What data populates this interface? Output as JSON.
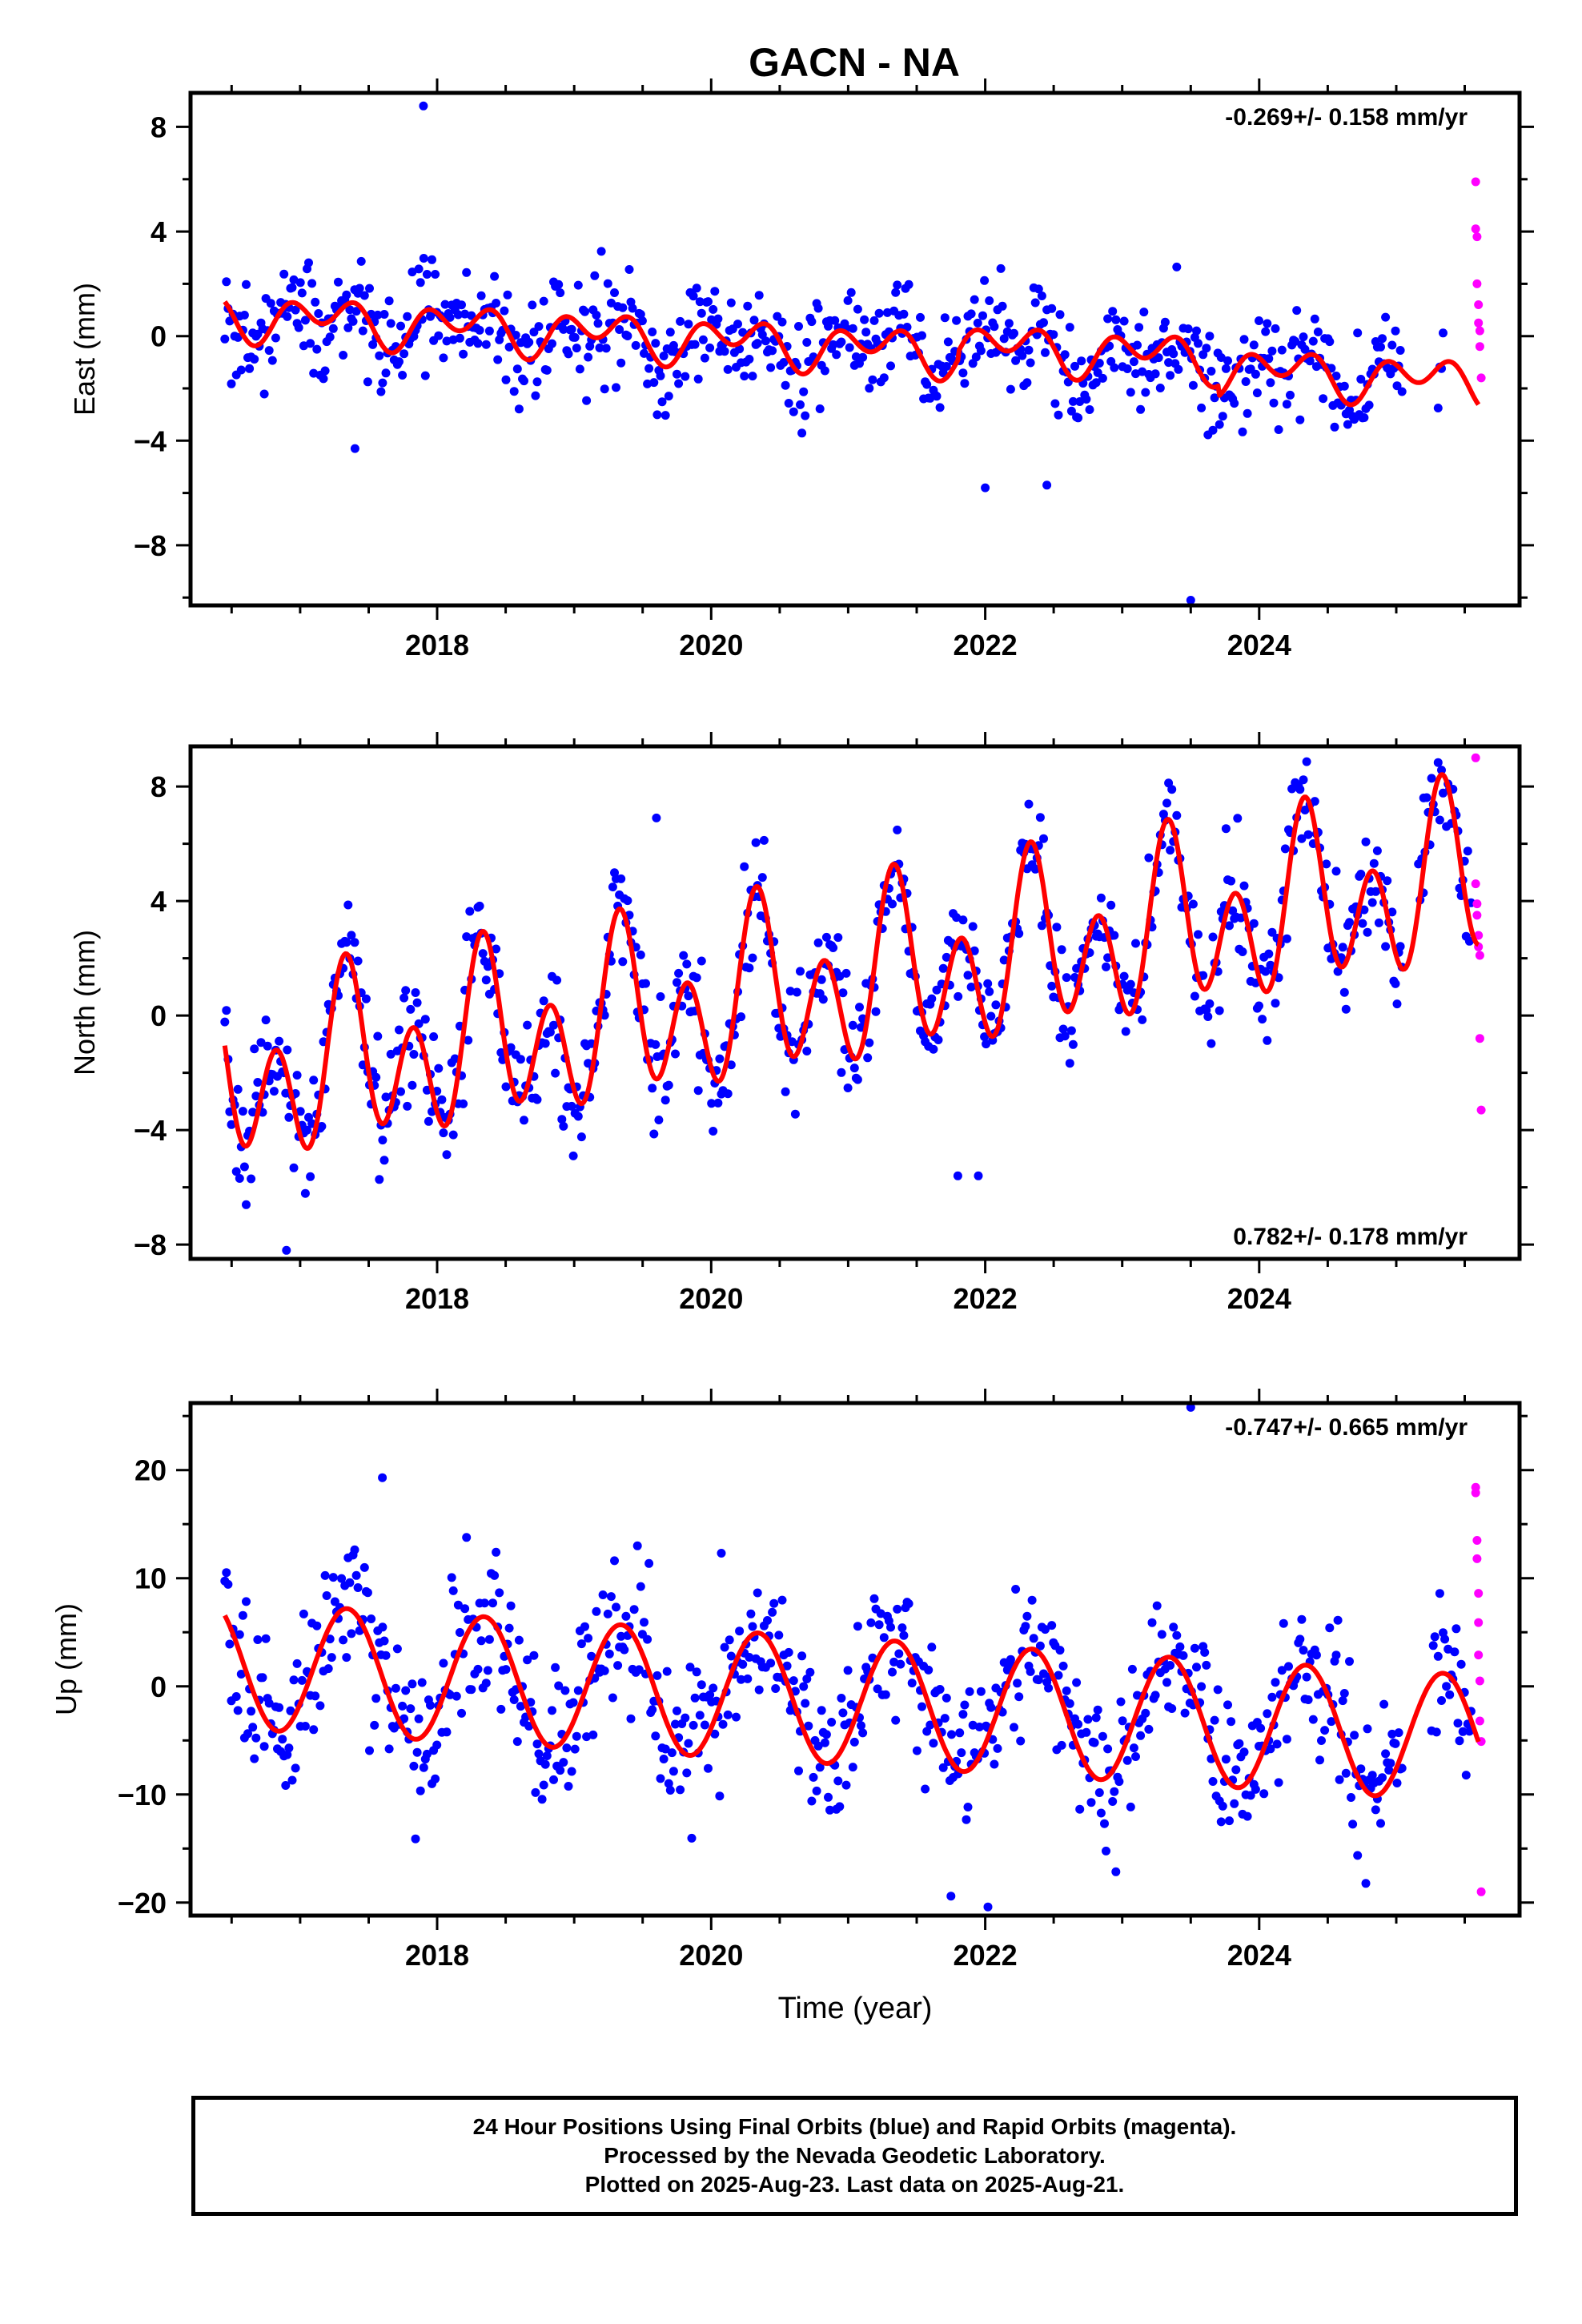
{
  "figure": {
    "title": "GACN - NA"
  },
  "caption": {
    "lines": [
      "24 Hour Positions Using Final Orbits (blue) and Rapid Orbits (magenta).",
      "Processed by the Nevada Geodetic Laboratory.",
      "Plotted on 2025-Aug-23. Last data on 2025-Aug-21."
    ]
  },
  "colors": {
    "final": "#0000ff",
    "rapid": "#ff00ff",
    "model": "#ff0000",
    "frame": "#000000"
  },
  "chart_data": [
    {
      "type": "scatter",
      "id": "east",
      "title": "GACN - NA",
      "ylabel": "East (mm)",
      "xlabel": "",
      "xlim": [
        2016.2,
        2025.9
      ],
      "ylim": [
        -10.3,
        9.3
      ],
      "xticks": [
        2018,
        2020,
        2022,
        2024
      ],
      "yticks": [
        -8,
        -4,
        0,
        4,
        8
      ],
      "yticklabels": [
        "−8",
        "−4",
        "0",
        "4",
        "8"
      ],
      "rate_label": "-0.269+/- 0.158 mm/yr",
      "rate_label_position": "top-right",
      "series": [
        {
          "name": "Final Orbits",
          "role": "final",
          "start": 2016.45,
          "end": 2025.35,
          "step": 0.012,
          "gap": [
            2025.05,
            2025.3
          ],
          "scatter": 1.0
        },
        {
          "name": "Rapid Orbits",
          "role": "rapid",
          "x": [
            2025.58,
            2025.58,
            2025.59,
            2025.59,
            2025.6,
            2025.6,
            2025.61,
            2025.61,
            2025.62
          ],
          "y": [
            5.9,
            4.1,
            3.8,
            2.0,
            1.2,
            0.5,
            0.2,
            -0.4,
            -1.6
          ]
        },
        {
          "name": "Model",
          "role": "model",
          "start": 2016.45,
          "end": 2025.6,
          "step": 0.01,
          "model": {
            "x0": 2016.45,
            "offset": 0.8,
            "rate": -0.269,
            "ann_cos": 0.2,
            "ann_sin": 0.45,
            "semi_cos": 0.3,
            "semi_sin": -0.55,
            "offsets": [
              {
                "t": 2021.8,
                "dy": 0.3
              },
              {
                "t": 2023.7,
                "dy": -0.4
              }
            ]
          }
        }
      ],
      "outliers": {
        "x": [
          2017.4,
          2017.9,
          2022.0,
          2022.45,
          2023.5
        ],
        "y": [
          -4.3,
          8.8,
          -5.8,
          -5.7,
          -10.1
        ]
      }
    },
    {
      "type": "scatter",
      "id": "north",
      "ylabel": "North (mm)",
      "xlabel": "",
      "xlim": [
        2016.2,
        2025.9
      ],
      "ylim": [
        -8.5,
        9.4
      ],
      "xticks": [
        2018,
        2020,
        2022,
        2024
      ],
      "yticks": [
        -8,
        -4,
        0,
        4,
        8
      ],
      "yticklabels": [
        "−8",
        "−4",
        "0",
        "4",
        "8"
      ],
      "rate_label": "0.782+/- 0.178 mm/yr",
      "rate_label_position": "bottom-right",
      "series": [
        {
          "name": "Final Orbits",
          "role": "final",
          "start": 2016.45,
          "end": 2025.55,
          "step": 0.012,
          "gap": [
            2025.05,
            2025.15
          ],
          "scatter": 1.05
        },
        {
          "name": "Rapid Orbits",
          "role": "rapid",
          "x": [
            2025.58,
            2025.58,
            2025.59,
            2025.59,
            2025.6,
            2025.6,
            2025.61,
            2025.61,
            2025.62
          ],
          "y": [
            9.0,
            4.6,
            3.9,
            3.5,
            2.8,
            2.4,
            2.1,
            -0.8,
            -3.3
          ]
        },
        {
          "name": "Model",
          "role": "model",
          "start": 2016.45,
          "end": 2025.6,
          "step": 0.01,
          "model": {
            "x0": 2016.45,
            "offset": -2.4,
            "rate": 0.782,
            "ann_cos": -0.9,
            "ann_sin": 1.2,
            "semi_cos": -1.3,
            "semi_sin": -2.0,
            "offsets": []
          }
        }
      ],
      "outliers": {
        "x": [
          2016.9,
          2019.6,
          2021.8,
          2021.95,
          2025.2
        ],
        "y": [
          -8.2,
          6.9,
          -5.6,
          -5.6,
          7.6
        ]
      }
    },
    {
      "type": "scatter",
      "id": "up",
      "ylabel": "Up (mm)",
      "xlabel": "Time (year)",
      "xlim": [
        2016.2,
        2025.9
      ],
      "ylim": [
        -21.2,
        26.2
      ],
      "xticks": [
        2018,
        2020,
        2022,
        2024
      ],
      "yticks": [
        -20,
        -10,
        0,
        10,
        20
      ],
      "yticklabels": [
        "−20",
        "−10",
        "0",
        "10",
        "20"
      ],
      "rate_label": "-0.747+/- 0.665 mm/yr",
      "rate_label_position": "top-right",
      "series": [
        {
          "name": "Final Orbits",
          "role": "final",
          "start": 2016.45,
          "end": 2025.55,
          "step": 0.012,
          "gap": [
            2025.05,
            2025.25
          ],
          "scatter": 3.6
        },
        {
          "name": "Rapid Orbits",
          "role": "rapid",
          "x": [
            2025.58,
            2025.58,
            2025.59,
            2025.59,
            2025.6,
            2025.6,
            2025.6,
            2025.61,
            2025.61,
            2025.62,
            2025.62
          ],
          "y": [
            18.4,
            17.9,
            13.5,
            11.8,
            8.6,
            5.9,
            2.9,
            0.5,
            -3.2,
            -5.1,
            -19.0
          ]
        },
        {
          "name": "Model",
          "role": "model",
          "start": 2016.45,
          "end": 2025.6,
          "step": 0.01,
          "model": {
            "x0": 2016.45,
            "offset": 2.0,
            "rate": -0.747,
            "ann_cos": -3.2,
            "ann_sin": 4.9,
            "semi_cos": 0.0,
            "semi_sin": 0.0,
            "offsets": []
          }
        }
      ],
      "outliers": {
        "x": [
          2017.6,
          2021.75,
          2022.02,
          2023.5
        ],
        "y": [
          19.3,
          -19.4,
          -20.4,
          25.8
        ]
      }
    }
  ]
}
